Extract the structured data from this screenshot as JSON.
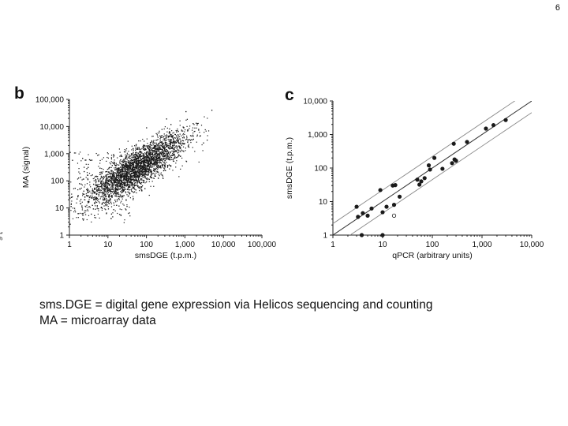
{
  "page_number": "6",
  "caption": {
    "line1": "sms.DGE = digital gene expression via Helicos sequencing and counting",
    "line2": "MA = microarray data"
  },
  "edge_glyph": "J 6",
  "colors": {
    "points": "#1a1a1a",
    "axis": "#222222",
    "fit_line": "#333333",
    "band_line": "#888888"
  },
  "chart_data": [
    {
      "panel": "b",
      "type": "scatter",
      "xscale": "log",
      "yscale": "log",
      "xlim": [
        1,
        100000
      ],
      "ylim": [
        1,
        100000
      ],
      "xlabel": "smsDGE (t.p.m.)",
      "ylabel": "MA (signal)",
      "xticks": [
        "1",
        "10",
        "100",
        "1,000",
        "10,000",
        "100,000"
      ],
      "yticks": [
        "1",
        "10",
        "100",
        "1,000",
        "10,000",
        "100,000"
      ],
      "density": {
        "approx_points": 4000,
        "center_x": 60,
        "center_y": 300,
        "note": "dense cloud along the diagonal, spread roughly one decade"
      }
    },
    {
      "panel": "c",
      "type": "scatter",
      "xscale": "log",
      "yscale": "log",
      "xlim": [
        1,
        10000
      ],
      "ylim": [
        1,
        10000
      ],
      "xlabel": "qPCR (arbitrary units)",
      "ylabel": "smsDGE (t.p.m.)",
      "xticks": [
        "1",
        "10",
        "100",
        "1,000",
        "10,000"
      ],
      "yticks": [
        "1",
        "10",
        "100",
        "1,000",
        "10,000"
      ],
      "fit_line": {
        "x": [
          1,
          10000
        ],
        "y": [
          1,
          10000
        ]
      },
      "band_lines": [
        {
          "x": [
            1,
            10000
          ],
          "factor": 2.2
        },
        {
          "x": [
            1,
            10000
          ],
          "factor": 0.45
        }
      ],
      "points": [
        {
          "x": 3.0,
          "y": 7.0
        },
        {
          "x": 3.2,
          "y": 3.5
        },
        {
          "x": 4.0,
          "y": 4.5
        },
        {
          "x": 5.0,
          "y": 3.8
        },
        {
          "x": 3.8,
          "y": 1.0
        },
        {
          "x": 6.0,
          "y": 6.2
        },
        {
          "x": 9.0,
          "y": 22
        },
        {
          "x": 10,
          "y": 4.8
        },
        {
          "x": 10,
          "y": 1.0
        },
        {
          "x": 12,
          "y": 7.0
        },
        {
          "x": 16,
          "y": 30
        },
        {
          "x": 17,
          "y": 8.0
        },
        {
          "x": 17,
          "y": 3.8
        },
        {
          "x": 18,
          "y": 31
        },
        {
          "x": 22,
          "y": 14
        },
        {
          "x": 50,
          "y": 45
        },
        {
          "x": 55,
          "y": 32
        },
        {
          "x": 60,
          "y": 40
        },
        {
          "x": 70,
          "y": 50
        },
        {
          "x": 85,
          "y": 120
        },
        {
          "x": 90,
          "y": 90
        },
        {
          "x": 110,
          "y": 200
        },
        {
          "x": 160,
          "y": 95
        },
        {
          "x": 250,
          "y": 140
        },
        {
          "x": 270,
          "y": 530
        },
        {
          "x": 280,
          "y": 180
        },
        {
          "x": 300,
          "y": 165
        },
        {
          "x": 500,
          "y": 600
        },
        {
          "x": 1200,
          "y": 1500
        },
        {
          "x": 1700,
          "y": 1900
        },
        {
          "x": 3000,
          "y": 2700
        }
      ]
    }
  ]
}
